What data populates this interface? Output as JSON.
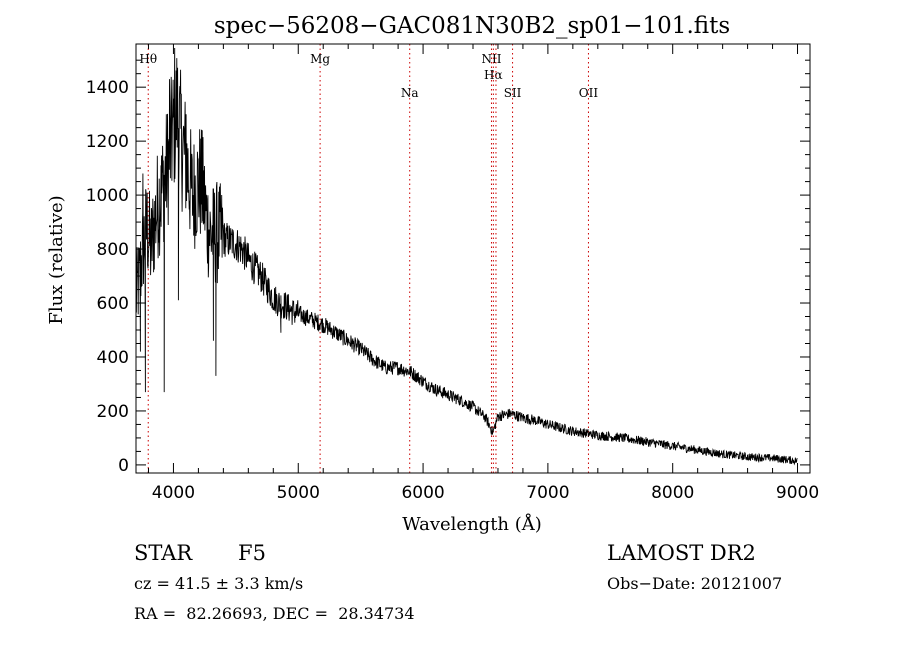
{
  "chart_data": {
    "type": "line",
    "title": "spec−56208−GAC081N30B2_sp01−101.fits",
    "xlabel": "Wavelength (Å)",
    "ylabel": "Flux (relative)",
    "xlim": [
      3700,
      9100
    ],
    "ylim": [
      -30,
      1560
    ],
    "x_ticks": [
      4000,
      5000,
      6000,
      7000,
      8000,
      9000
    ],
    "x_tick_labels": [
      "4000",
      "5000",
      "6000",
      "7000",
      "8000",
      "9000"
    ],
    "y_ticks": [
      0,
      200,
      400,
      600,
      800,
      1000,
      1200,
      1400
    ],
    "y_tick_labels": [
      "0",
      "200",
      "400",
      "600",
      "800",
      "1000",
      "1200",
      "1400"
    ],
    "line_color": "#000000",
    "marker_color": "#cc0000",
    "lines": [
      {
        "label": "Hθ",
        "wavelength": 3798,
        "label_level": "top"
      },
      {
        "label": "Mg",
        "wavelength": 5175,
        "label_level": "top"
      },
      {
        "label": "Na",
        "wavelength": 5893,
        "label_level": "low"
      },
      {
        "label": "NΙΙ",
        "wavelength": 6548,
        "label_level": "top"
      },
      {
        "label": "Hα",
        "wavelength": 6563,
        "label_level": "mid"
      },
      {
        "label": "NΙΙ",
        "wavelength": 6584,
        "label_level": "none"
      },
      {
        "label": "SΙΙ",
        "wavelength": 6717,
        "label_level": "low"
      },
      {
        "label": "OΙΙ",
        "wavelength": 7325,
        "label_level": "low"
      }
    ],
    "spectrum": {
      "x": [
        3700,
        3730,
        3760,
        3790,
        3820,
        3850,
        3880,
        3910,
        3940,
        3970,
        4000,
        4030,
        4060,
        4090,
        4120,
        4150,
        4180,
        4210,
        4240,
        4270,
        4300,
        4350,
        4400,
        4450,
        4500,
        4550,
        4600,
        4650,
        4700,
        4750,
        4800,
        4850,
        4900,
        4950,
        5000,
        5100,
        5200,
        5300,
        5400,
        5500,
        5600,
        5700,
        5800,
        5900,
        6000,
        6100,
        6200,
        6300,
        6400,
        6500,
        6560,
        6600,
        6700,
        6800,
        6900,
        7000,
        7200,
        7400,
        7600,
        7800,
        8000,
        8200,
        8400,
        8600,
        8800,
        9000
      ],
      "y": [
        620,
        700,
        820,
        880,
        800,
        900,
        980,
        1020,
        1080,
        1150,
        1250,
        1320,
        1200,
        1150,
        1080,
        1000,
        1030,
        1050,
        1000,
        900,
        850,
        860,
        840,
        830,
        820,
        800,
        760,
        730,
        700,
        660,
        620,
        600,
        590,
        570,
        560,
        540,
        520,
        490,
        460,
        430,
        390,
        360,
        360,
        345,
        310,
        280,
        260,
        240,
        215,
        175,
        120,
        180,
        190,
        175,
        165,
        150,
        125,
        110,
        100,
        85,
        70,
        55,
        40,
        30,
        25,
        15
      ],
      "noise_amplitude": 35,
      "spikes": [
        {
          "x": 3735,
          "y": 420
        },
        {
          "x": 3755,
          "y": 1080
        },
        {
          "x": 3775,
          "y": 270
        },
        {
          "x": 3900,
          "y": 1110
        },
        {
          "x": 3926,
          "y": 270
        },
        {
          "x": 3968,
          "y": 1430
        },
        {
          "x": 3985,
          "y": 1330
        },
        {
          "x": 4010,
          "y": 1545
        },
        {
          "x": 4040,
          "y": 610
        },
        {
          "x": 4101,
          "y": 1300
        },
        {
          "x": 4230,
          "y": 1240
        },
        {
          "x": 4320,
          "y": 460
        },
        {
          "x": 4340,
          "y": 330
        },
        {
          "x": 4861,
          "y": 490
        }
      ]
    }
  },
  "info": {
    "object_type": "STAR",
    "subclass": "F5",
    "survey": "LAMOST DR2",
    "redshift": "cz = 41.5 ± 3.3 km/s",
    "obs_date": "Obs−Date: 20121007",
    "coords": "RA =  82.26693, DEC =  28.34734"
  }
}
